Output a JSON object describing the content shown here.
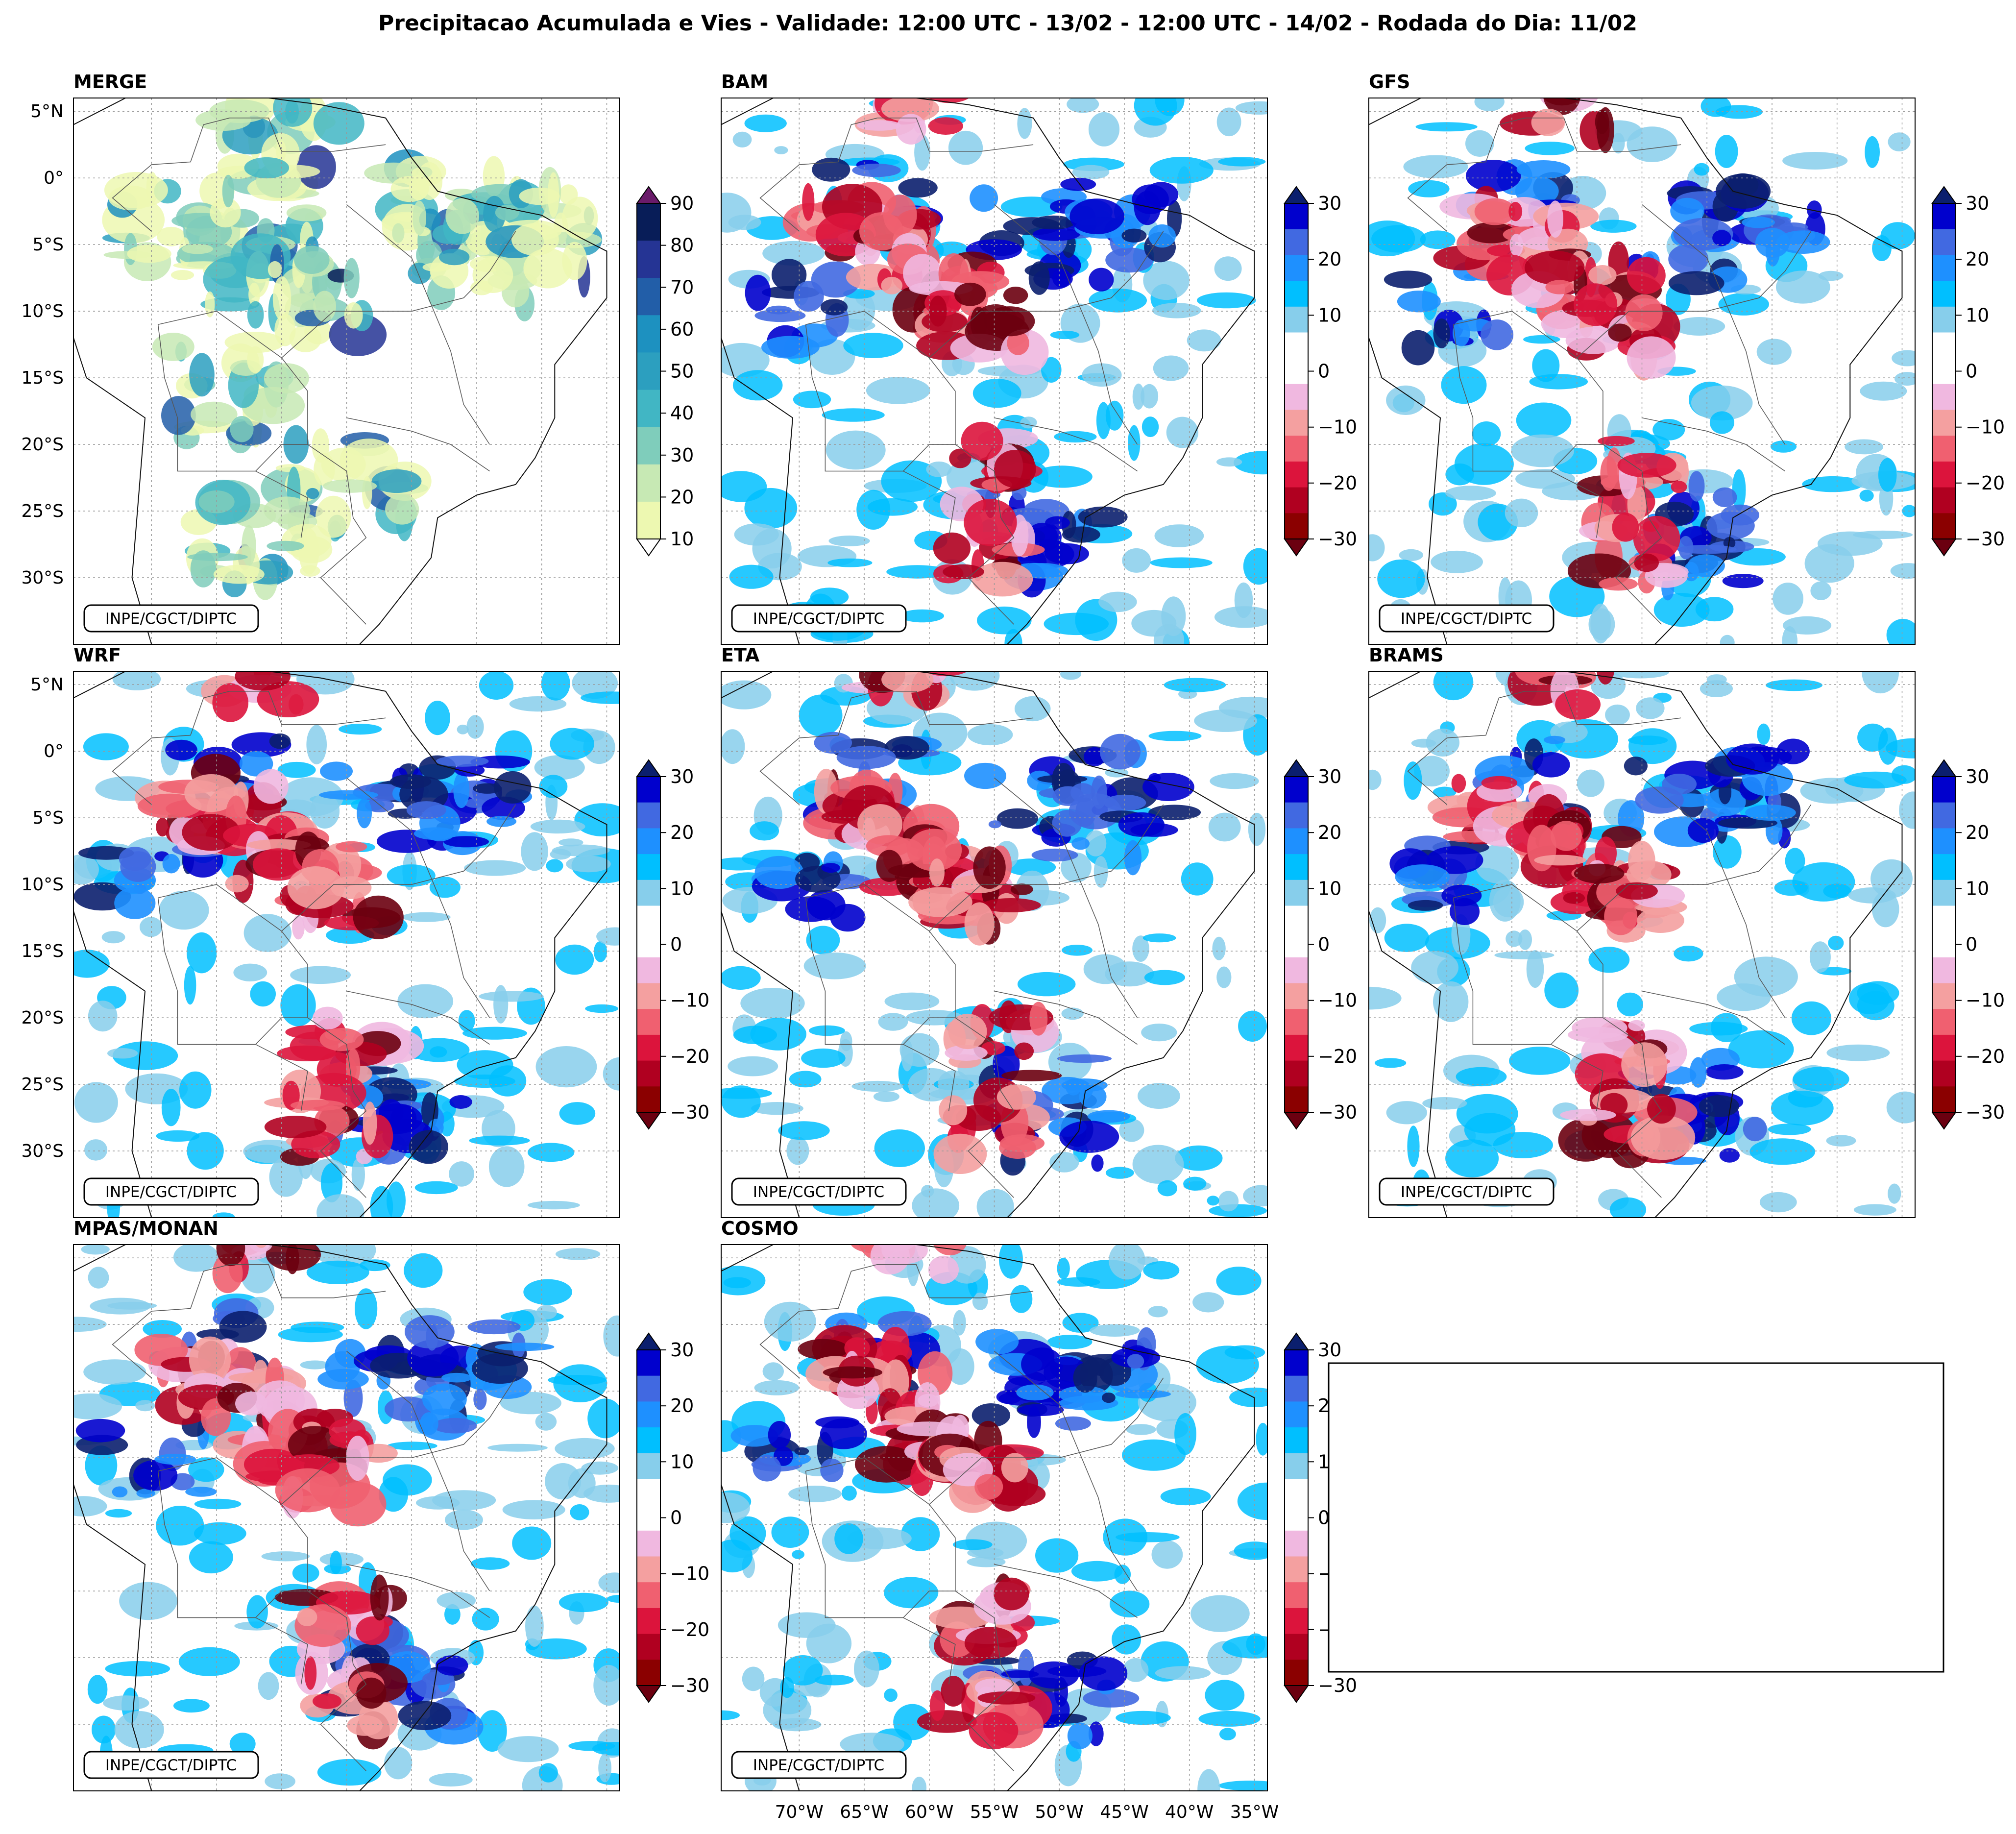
{
  "figure": {
    "title": "Precipitacao Acumulada e Vies - Validade: 12:00 UTC - 13/02 - 12:00 UTC - 14/02 - Rodada do Dia: 11/02",
    "credit": "INPE/CGCT/DIPTC"
  },
  "lat_labels": [
    "5°N",
    "0°",
    "5°S",
    "10°S",
    "15°S",
    "20°S",
    "25°S",
    "30°S"
  ],
  "lon_labels": [
    "70°W",
    "65°W",
    "60°W",
    "55°W",
    "50°W",
    "45°W",
    "40°W",
    "35°W"
  ],
  "panels": [
    {
      "title": "MERGE",
      "kind": "precip"
    },
    {
      "title": "BAM",
      "kind": "bias"
    },
    {
      "title": "GFS",
      "kind": "bias"
    },
    {
      "title": "WRF",
      "kind": "bias"
    },
    {
      "title": "ETA",
      "kind": "bias"
    },
    {
      "title": "BRAMS",
      "kind": "bias"
    },
    {
      "title": "MPAS/MONAN",
      "kind": "bias"
    },
    {
      "title": "COSMO",
      "kind": "bias"
    }
  ],
  "colorbars": {
    "precip": {
      "ticks": [
        "10",
        "20",
        "30",
        "40",
        "50",
        "60",
        "70",
        "80",
        "90"
      ],
      "colors": [
        "#edf8b1",
        "#c7e9b4",
        "#7fcdbb",
        "#41b6c4",
        "#2c9fbf",
        "#1d91c0",
        "#225ea8",
        "#253494",
        "#081d58"
      ],
      "over_color": "#6a1b6a"
    },
    "bias": {
      "ticks": [
        "30",
        "20",
        "10",
        "0",
        "−10",
        "−20",
        "−30"
      ],
      "colors": [
        "#0000cd",
        "#4169e1",
        "#1e90ff",
        "#00bfff",
        "#87ceeb",
        "#ffffff",
        "#ffffff",
        "#f0b8e0",
        "#f4a0a0",
        "#f06070",
        "#dc143c",
        "#b00020",
        "#8b0000"
      ],
      "over_color": "#0b1f6e",
      "under_color": "#6b0010"
    }
  }
}
